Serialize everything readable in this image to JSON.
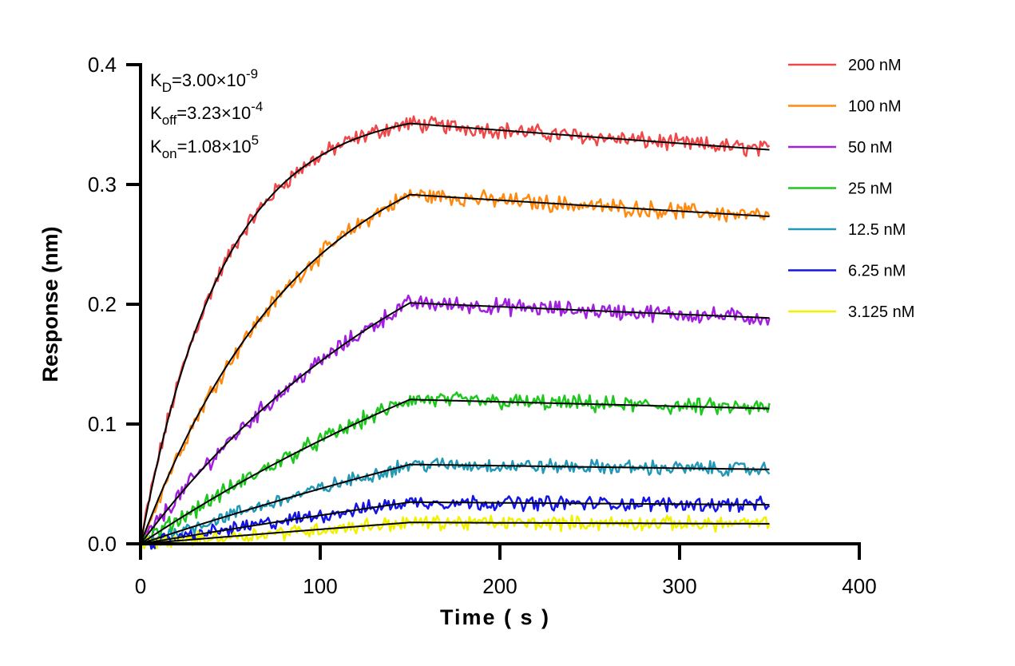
{
  "chart_data": {
    "type": "line",
    "title": "",
    "xlabel": "Time ( s )",
    "ylabel": "Response (nm)",
    "xlim": [
      0,
      400
    ],
    "ylim": [
      0,
      0.4
    ],
    "xticks": [
      "0",
      "100",
      "200",
      "300",
      "400"
    ],
    "yticks": [
      "0.0",
      "0.1",
      "0.2",
      "0.3",
      "0.4"
    ],
    "xtick_values": [
      0,
      100,
      200,
      300,
      400
    ],
    "ytick_values": [
      0,
      0.1,
      0.2,
      0.3,
      0.4
    ],
    "legend_position": "top-right",
    "grid": false,
    "annotations": {
      "kd": {
        "base": "K",
        "sub": "D",
        "value": "=3.00×10",
        "exp": "-9"
      },
      "koff": {
        "base": "K",
        "sub": "off",
        "value": "=3.23×10",
        "exp": "-4"
      },
      "kon": {
        "base": "K",
        "sub": "on",
        "value": "=1.08×10",
        "exp": "5"
      }
    },
    "fit_model": {
      "kon": 108000,
      "koff": 0.000323,
      "rmax": 0.37,
      "association_end_s": 150,
      "experiment_end_s": 350,
      "fit_color": "#000000"
    },
    "series": [
      {
        "name": "200 nM",
        "conc_nM": 200,
        "color": "#f04848",
        "peak": 0.352,
        "end": 0.331
      },
      {
        "name": "100 nM",
        "conc_nM": 100,
        "color": "#ff8a10",
        "peak": 0.287,
        "end": 0.269
      },
      {
        "name": "50 nM",
        "conc_nM": 50,
        "color": "#a31fe0",
        "peak": 0.219,
        "end": 0.204
      },
      {
        "name": "25 nM",
        "conc_nM": 25,
        "color": "#1ec81e",
        "peak": 0.139,
        "end": 0.13
      },
      {
        "name": "12.5 nM",
        "conc_nM": 12.5,
        "color": "#2399b8",
        "peak": 0.098,
        "end": 0.092
      },
      {
        "name": "6.25 nM",
        "conc_nM": 6.25,
        "color": "#1414e6",
        "peak": 0.04,
        "end": 0.038
      },
      {
        "name": "3.125 nM",
        "conc_nM": 3.125,
        "color": "#f2f200",
        "peak": 0.022,
        "end": 0.021
      }
    ]
  }
}
